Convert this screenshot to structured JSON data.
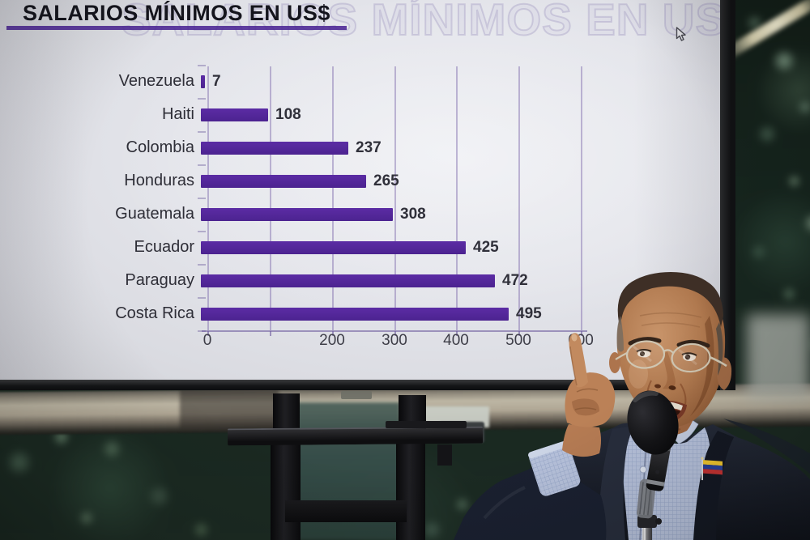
{
  "title": "SALARIOS MÍNIMOS EN US$",
  "chart_data": {
    "type": "bar",
    "orientation": "horizontal",
    "title": "SALARIOS MÍNIMOS EN US$",
    "categories": [
      "Venezuela",
      "Haiti",
      "Colombia",
      "Honduras",
      "Guatemala",
      "Ecuador",
      "Paraguay",
      "Costa Rica"
    ],
    "values": [
      7,
      108,
      237,
      265,
      308,
      425,
      472,
      495
    ],
    "xlabel": "",
    "ylabel": "",
    "xlim": [
      0,
      600
    ],
    "grid": true,
    "value_labels": true,
    "x_ticks": [
      {
        "value": 0,
        "label": "0"
      },
      {
        "value": 100,
        "label": ""
      },
      {
        "value": 200,
        "label": "200"
      },
      {
        "value": 300,
        "label": "300"
      },
      {
        "value": 400,
        "label": "400"
      },
      {
        "value": 500,
        "label": "500"
      },
      {
        "value": 600,
        "label": "600"
      }
    ]
  },
  "colors": {
    "bar": "#5b2ca4",
    "bar_dark": "#4c2390",
    "grid": "rgba(125,105,170,0.45)",
    "axis": "rgba(110,92,158,0.6)",
    "title": "#15151d",
    "underline": "#4b2694",
    "screen_bg": "#e4e5ea",
    "bezel": "#17181a",
    "foliage": "#1b2a22",
    "blazer": "#1c2230",
    "shirt": "#b7c2dc",
    "skin": "#b97f57",
    "flag_yellow": "#f2c72e",
    "flag_blue": "#27419b",
    "flag_red": "#c53232"
  },
  "icons": {
    "cursor": "arrow-pointer",
    "flag_pin": "venezuela-flag-pin",
    "microphone": "microphone-on-stand"
  }
}
